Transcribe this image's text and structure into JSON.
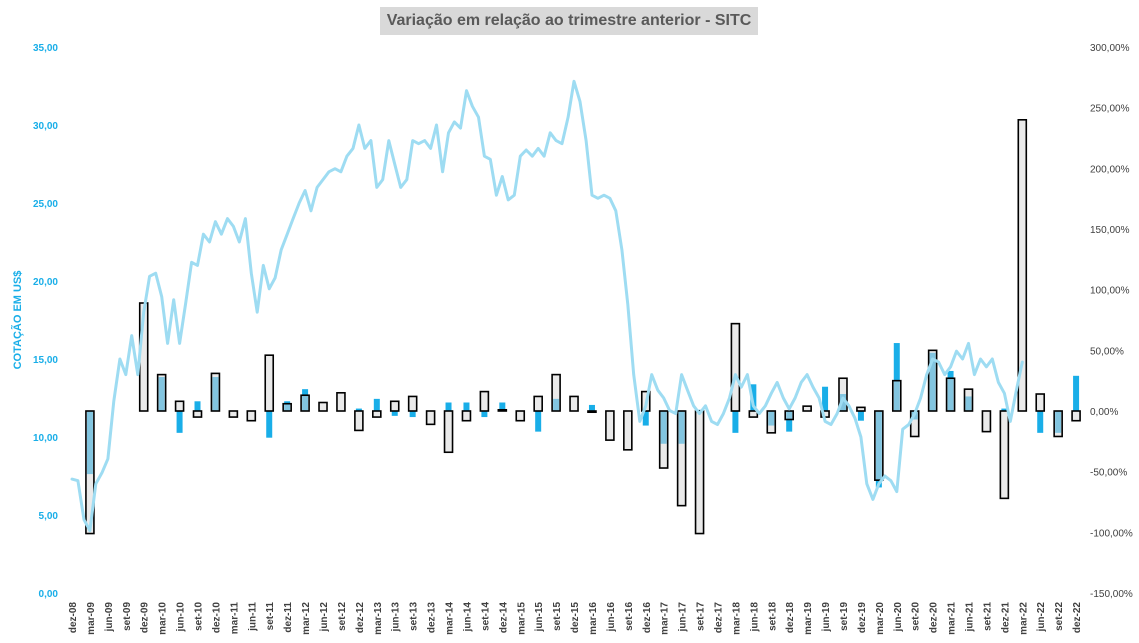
{
  "chart_data": {
    "type": "bar+line",
    "title": "Variação em relação ao trimestre anterior - SITC",
    "ylabel_left": "COTAÇÃO EM US$",
    "ylabel_right": "",
    "left_axis": {
      "min": 0,
      "max": 35,
      "step": 5,
      "ticks": [
        "0,00",
        "5,00",
        "10,00",
        "15,00",
        "20,00",
        "25,00",
        "30,00",
        "35,00"
      ]
    },
    "right_axis": {
      "min": -150,
      "max": 300,
      "step": 50,
      "ticks": [
        "-150,00%",
        "-100,00%",
        "-50,00%",
        "0,00%",
        "50,00%",
        "100,00%",
        "150,00%",
        "200,00%",
        "250,00%",
        "300,00%"
      ]
    },
    "categories": [
      "dez-08",
      "mar-09",
      "jun-09",
      "set-09",
      "dez-09",
      "mar-10",
      "jun-10",
      "set-10",
      "dez-10",
      "mar-11",
      "jun-11",
      "set-11",
      "dez-11",
      "mar-12",
      "jun-12",
      "set-12",
      "dez-12",
      "mar-13",
      "jun-13",
      "set-13",
      "dez-13",
      "mar-14",
      "jun-14",
      "set-14",
      "dez-14",
      "mar-15",
      "jun-15",
      "set-15",
      "dez-15",
      "mar-16",
      "jun-16",
      "set-16",
      "dez-16",
      "mar-17",
      "jun-17",
      "set-17",
      "dez-17",
      "mar-18",
      "jun-18",
      "set-18",
      "dez-18",
      "mar-19",
      "jun-19",
      "set-19",
      "dez-19",
      "mar-20",
      "jun-20",
      "set-20",
      "dez-20",
      "mar-21",
      "jun-21",
      "set-21",
      "dez-21",
      "mar-22",
      "jun-22",
      "set-22",
      "dez-22"
    ],
    "grid": false,
    "legend": "none",
    "colors": {
      "line": "#9edcf2",
      "blue_bar": "#19aee8",
      "outline_fill": "#d9d9d9",
      "outline_stroke": "#000000",
      "left_axis_text": "#19aee8",
      "right_axis_text": "#404040"
    },
    "series": [
      {
        "type": "line",
        "axis": "left",
        "points": [
          [
            0,
            7.3
          ],
          [
            0.33,
            7.2
          ],
          [
            0.67,
            4.7
          ],
          [
            1,
            4.0
          ],
          [
            1.33,
            7.0
          ],
          [
            1.67,
            7.7
          ],
          [
            2,
            8.6
          ],
          [
            2.33,
            12.3
          ],
          [
            2.67,
            15.0
          ],
          [
            3,
            14.0
          ],
          [
            3.33,
            16.5
          ],
          [
            3.67,
            14.0
          ],
          [
            4,
            18.0
          ],
          [
            4.33,
            20.3
          ],
          [
            4.67,
            20.5
          ],
          [
            5,
            19.0
          ],
          [
            5.33,
            16.0
          ],
          [
            5.67,
            18.8
          ],
          [
            6,
            16.0
          ],
          [
            6.33,
            18.5
          ],
          [
            6.67,
            21.2
          ],
          [
            7,
            21.0
          ],
          [
            7.33,
            23.0
          ],
          [
            7.67,
            22.5
          ],
          [
            8,
            23.8
          ],
          [
            8.33,
            23.0
          ],
          [
            8.67,
            24.0
          ],
          [
            9,
            23.5
          ],
          [
            9.33,
            22.5
          ],
          [
            9.67,
            24.0
          ],
          [
            10,
            20.5
          ],
          [
            10.33,
            18.0
          ],
          [
            10.67,
            21.0
          ],
          [
            11,
            19.5
          ],
          [
            11.33,
            20.2
          ],
          [
            11.67,
            22.0
          ],
          [
            12,
            23.0
          ],
          [
            12.33,
            24.0
          ],
          [
            12.67,
            25.0
          ],
          [
            13,
            25.8
          ],
          [
            13.33,
            24.5
          ],
          [
            13.67,
            26.0
          ],
          [
            14,
            26.5
          ],
          [
            14.33,
            27.0
          ],
          [
            14.67,
            27.2
          ],
          [
            15,
            27.0
          ],
          [
            15.33,
            28.0
          ],
          [
            15.67,
            28.5
          ],
          [
            16,
            30.0
          ],
          [
            16.33,
            28.5
          ],
          [
            16.67,
            29.0
          ],
          [
            17,
            26.0
          ],
          [
            17.33,
            26.5
          ],
          [
            17.67,
            29.0
          ],
          [
            18,
            27.5
          ],
          [
            18.33,
            26.0
          ],
          [
            18.67,
            26.5
          ],
          [
            19,
            29.0
          ],
          [
            19.33,
            28.8
          ],
          [
            19.67,
            29.0
          ],
          [
            20,
            28.5
          ],
          [
            20.33,
            30.0
          ],
          [
            20.67,
            27.0
          ],
          [
            21,
            29.5
          ],
          [
            21.33,
            30.2
          ],
          [
            21.67,
            29.8
          ],
          [
            22,
            32.2
          ],
          [
            22.33,
            31.2
          ],
          [
            22.67,
            30.5
          ],
          [
            23,
            28.0
          ],
          [
            23.33,
            27.8
          ],
          [
            23.67,
            25.5
          ],
          [
            24,
            26.7
          ],
          [
            24.33,
            25.2
          ],
          [
            24.67,
            25.5
          ],
          [
            25,
            28.0
          ],
          [
            25.33,
            28.4
          ],
          [
            25.67,
            28.0
          ],
          [
            26,
            28.5
          ],
          [
            26.33,
            28.0
          ],
          [
            26.67,
            29.5
          ],
          [
            27,
            29.0
          ],
          [
            27.33,
            28.8
          ],
          [
            27.67,
            30.5
          ],
          [
            28,
            32.8
          ],
          [
            28.33,
            31.5
          ],
          [
            28.67,
            29.0
          ],
          [
            29,
            25.5
          ],
          [
            29.33,
            25.3
          ],
          [
            29.67,
            25.5
          ],
          [
            30,
            25.3
          ],
          [
            30.33,
            24.5
          ],
          [
            30.67,
            22.0
          ],
          [
            31,
            18.5
          ],
          [
            31.33,
            14.0
          ],
          [
            31.67,
            11.0
          ],
          [
            32,
            12.0
          ],
          [
            32.33,
            14.0
          ],
          [
            32.67,
            13.0
          ],
          [
            33,
            12.5
          ],
          [
            33.33,
            11.7
          ],
          [
            33.67,
            11.5
          ],
          [
            34,
            14.0
          ],
          [
            34.33,
            13.0
          ],
          [
            34.67,
            12.0
          ],
          [
            35,
            11.5
          ],
          [
            35.33,
            12.0
          ],
          [
            35.67,
            11.0
          ],
          [
            36,
            10.8
          ],
          [
            36.33,
            11.5
          ],
          [
            36.67,
            12.5
          ],
          [
            37,
            14.0
          ],
          [
            37.33,
            13.2
          ],
          [
            37.67,
            14.0
          ],
          [
            38,
            12.0
          ],
          [
            38.33,
            11.5
          ],
          [
            38.67,
            12.0
          ],
          [
            39,
            12.8
          ],
          [
            39.33,
            13.5
          ],
          [
            39.67,
            12.5
          ],
          [
            40,
            11.8
          ],
          [
            40.33,
            12.5
          ],
          [
            40.67,
            13.5
          ],
          [
            41,
            14.0
          ],
          [
            41.33,
            13.2
          ],
          [
            41.67,
            12.5
          ],
          [
            42,
            11.0
          ],
          [
            42.33,
            10.8
          ],
          [
            42.67,
            11.5
          ],
          [
            43,
            12.5
          ],
          [
            43.33,
            12.0
          ],
          [
            43.67,
            11.2
          ],
          [
            44,
            10.0
          ],
          [
            44.33,
            7.0
          ],
          [
            44.67,
            6.0
          ],
          [
            45,
            7.0
          ],
          [
            45.33,
            7.5
          ],
          [
            45.67,
            7.2
          ],
          [
            46,
            6.5
          ],
          [
            46.33,
            10.5
          ],
          [
            46.67,
            10.8
          ],
          [
            47,
            11.5
          ],
          [
            47.33,
            12.5
          ],
          [
            47.67,
            14.0
          ],
          [
            48,
            15.0
          ],
          [
            48.33,
            14.8
          ],
          [
            48.67,
            14.0
          ],
          [
            49,
            14.5
          ],
          [
            49.33,
            15.5
          ],
          [
            49.67,
            15.0
          ],
          [
            50,
            16.0
          ],
          [
            50.33,
            14.0
          ],
          [
            50.67,
            15.0
          ],
          [
            51,
            14.5
          ],
          [
            51.33,
            15.0
          ],
          [
            51.67,
            13.5
          ],
          [
            52,
            12.8
          ],
          [
            52.33,
            11.0
          ],
          [
            52.67,
            13.0
          ],
          [
            53,
            14.8
          ]
        ]
      },
      {
        "type": "bar",
        "name": "",
        "axis": "right",
        "style": "solid-blue",
        "values": [
          null,
          -52,
          null,
          null,
          null,
          28,
          -18,
          8,
          28,
          null,
          null,
          -22,
          8,
          18,
          null,
          null,
          2,
          10,
          -4,
          -5,
          null,
          7,
          7,
          -5,
          7,
          null,
          -17,
          10,
          null,
          5,
          null,
          null,
          -12,
          -27,
          -27,
          1,
          null,
          -18,
          22,
          -12,
          -17,
          null,
          20,
          14,
          -8,
          -63,
          56,
          -7,
          48,
          33,
          12,
          null,
          2,
          null,
          -18,
          -18,
          29
        ]
      },
      {
        "type": "bar",
        "name": "",
        "axis": "right",
        "style": "outlined-gray",
        "values": [
          null,
          -101,
          null,
          null,
          null,
          null,
          null,
          null,
          null,
          null,
          null,
          null,
          null,
          null,
          null,
          null,
          null,
          null,
          null,
          null,
          null,
          null,
          null,
          null,
          null,
          null,
          null,
          null,
          null,
          null,
          null,
          null,
          null,
          null,
          null,
          null,
          null,
          null,
          null,
          null,
          null,
          null,
          null,
          null,
          null,
          null,
          null,
          null,
          null,
          null,
          null,
          null,
          null,
          null,
          null,
          null,
          null
        ]
      },
      {
        "type": "bar",
        "name": "",
        "axis": "right",
        "style": "outlined-gray",
        "values": [
          null,
          null,
          null,
          null,
          89,
          30,
          8,
          -5,
          31,
          -5,
          -8,
          46,
          6,
          13,
          7,
          15,
          -16,
          -5,
          8,
          12,
          -11,
          -34,
          -8,
          16,
          1,
          -8,
          12,
          30,
          12,
          -1,
          -24,
          -32,
          16,
          -47,
          -78,
          -101,
          null,
          72,
          -5,
          -18,
          -7,
          4,
          -5,
          27,
          3,
          -57,
          25,
          -21,
          50,
          27,
          18,
          -17,
          -72,
          240,
          14,
          -21,
          -8
        ]
      }
    ]
  }
}
